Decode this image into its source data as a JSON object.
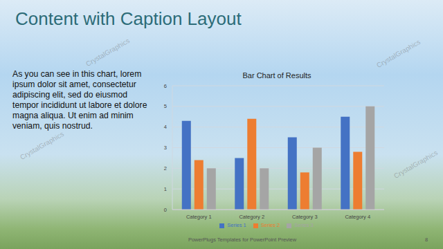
{
  "slide": {
    "title": "Content with Caption Layout",
    "caption": "As you can see in this chart, lorem ipsum dolor sit amet, consectetur adipiscing elit, sed do eiusmod tempor incididunt ut labore et dolore magna aliqua. Ut enim ad minim veniam, quis nostrud.",
    "footer": "PowerPlugs Templates for PowerPoint Preview",
    "page_number": 8,
    "watermark": "CrystalGraphics"
  },
  "chart_data": {
    "type": "bar",
    "title": "Bar Chart of Results",
    "categories": [
      "Category 1",
      "Category 2",
      "Category 3",
      "Category 4"
    ],
    "series": [
      {
        "name": "Series 1",
        "color": "#4472c4",
        "values": [
          4.3,
          2.5,
          3.5,
          4.5
        ]
      },
      {
        "name": "Series 2",
        "color": "#ed7d31",
        "values": [
          2.4,
          4.4,
          1.8,
          2.8
        ]
      },
      {
        "name": "Series 3",
        "color": "#a5a5a5",
        "values": [
          2,
          2,
          3,
          5
        ]
      }
    ],
    "ylim": [
      0,
      6
    ],
    "yticks": [
      0,
      1,
      2,
      3,
      4,
      5,
      6
    ],
    "grid": true,
    "legend": "bottom"
  }
}
